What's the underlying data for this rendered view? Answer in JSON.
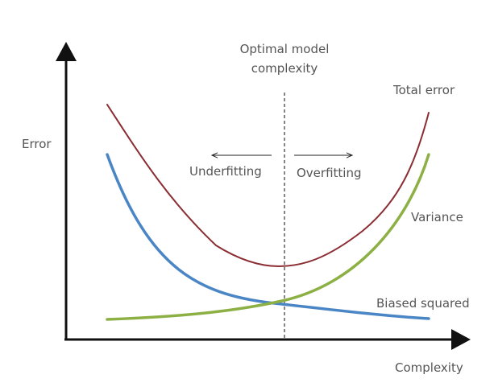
{
  "axes": {
    "y_label": "Error",
    "x_label": "Complexity"
  },
  "annotations": {
    "optimal_line1": "Optimal model",
    "optimal_line2": "complexity",
    "underfitting": "Underfitting",
    "overfitting": "Overfitting"
  },
  "curves": {
    "total_error": {
      "label": "Total error",
      "color": "#8b2e33"
    },
    "variance": {
      "label": "Variance",
      "color": "#8db045"
    },
    "bias_squared": {
      "label": "Biased squared",
      "color": "#4a86c5"
    }
  },
  "colors": {
    "axis": "#111111",
    "text": "#555555",
    "optimal_line": "#444444"
  }
}
